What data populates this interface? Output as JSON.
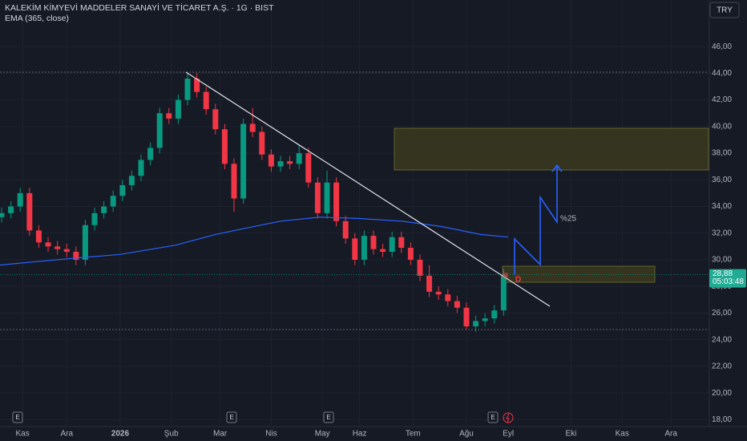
{
  "chart_data": {
    "type": "candlestick",
    "title": "KALEKİM KİMYEVİ MADDELER SANAYİ VE TİCARET A.Ş. · 1G · BIST",
    "currency": "TRY",
    "up_color": "#089981",
    "down_color": "#f23645",
    "x": [
      -9,
      -5,
      -1,
      3,
      7,
      11,
      15,
      19,
      23,
      27,
      31,
      35,
      39,
      43,
      47,
      51,
      55,
      59,
      63,
      67,
      71,
      75,
      79,
      83,
      87,
      91,
      95,
      99,
      103,
      107,
      111,
      115,
      119,
      123,
      127,
      131,
      135,
      139,
      143,
      147,
      151,
      155,
      159,
      163,
      167,
      171,
      175,
      179,
      183,
      187,
      191,
      195,
      199,
      203,
      207
    ],
    "open": [
      33.2,
      33.5,
      34.0,
      35.0,
      32.2,
      31.3,
      31.0,
      30.8,
      30.6,
      30.0,
      32.6,
      33.5,
      34.0,
      34.8,
      35.6,
      36.3,
      37.5,
      38.4,
      41.0,
      40.6,
      42.0,
      43.6,
      42.6,
      41.3,
      39.8,
      37.2,
      34.6,
      40.2,
      39.6,
      37.9,
      37.0,
      37.4,
      37.2,
      38.0,
      35.8,
      33.5,
      35.8,
      32.9,
      31.6,
      30.0,
      31.8,
      30.8,
      30.6,
      31.7,
      30.9,
      30.0,
      28.8,
      27.6,
      27.4,
      26.9,
      26.4,
      25.0,
      25.4,
      25.6,
      26.2
    ],
    "high": [
      33.9,
      34.4,
      35.4,
      35.4,
      32.6,
      31.7,
      31.4,
      31.2,
      31.0,
      33.0,
      33.9,
      34.4,
      35.2,
      36.0,
      36.7,
      37.9,
      38.8,
      41.4,
      41.4,
      42.4,
      44.0,
      44.0,
      43.0,
      41.7,
      40.2,
      37.6,
      40.6,
      41.4,
      40.0,
      38.3,
      37.8,
      37.8,
      38.6,
      38.4,
      36.2,
      36.7,
      36.2,
      33.3,
      32.0,
      32.2,
      32.2,
      31.2,
      32.1,
      32.1,
      31.3,
      30.4,
      29.6,
      28.0,
      27.8,
      27.3,
      26.8,
      25.8,
      26.0,
      26.6,
      29.3
    ],
    "low": [
      32.8,
      33.1,
      33.6,
      31.8,
      30.9,
      30.6,
      30.4,
      30.2,
      29.6,
      29.6,
      32.2,
      33.1,
      33.6,
      34.4,
      35.2,
      35.9,
      37.1,
      38.0,
      40.2,
      40.2,
      41.6,
      42.2,
      40.9,
      39.4,
      36.8,
      33.6,
      34.2,
      39.2,
      37.5,
      36.6,
      36.6,
      36.8,
      36.8,
      35.4,
      33.1,
      33.1,
      32.5,
      31.2,
      29.6,
      29.6,
      30.4,
      30.2,
      30.2,
      30.5,
      29.6,
      28.4,
      27.2,
      27.0,
      26.5,
      26.0,
      24.8,
      24.6,
      25.0,
      25.2,
      25.8
    ],
    "close": [
      33.5,
      34.0,
      35.0,
      32.2,
      31.3,
      31.0,
      30.8,
      30.6,
      30.0,
      32.6,
      33.5,
      34.0,
      34.8,
      35.6,
      36.3,
      37.5,
      38.4,
      41.0,
      40.6,
      42.0,
      43.6,
      42.6,
      41.3,
      39.8,
      37.2,
      34.6,
      40.2,
      39.6,
      37.9,
      37.0,
      37.4,
      37.2,
      38.0,
      35.8,
      33.5,
      35.8,
      32.9,
      31.6,
      30.0,
      31.8,
      30.8,
      30.6,
      31.7,
      30.9,
      30.0,
      28.8,
      27.6,
      27.4,
      26.9,
      26.4,
      25.0,
      25.4,
      25.6,
      26.2,
      28.88
    ],
    "ema": {
      "name": "EMA (365, close)",
      "color": "#2962ff",
      "x": [
        -10,
        21,
        42,
        66,
        83,
        94,
        111,
        128,
        145,
        163,
        180,
        197,
        209
      ],
      "values": [
        29.6,
        30.1,
        30.4,
        31.1,
        31.9,
        32.3,
        32.9,
        33.2,
        33.1,
        32.9,
        32.5,
        31.9,
        31.7
      ]
    },
    "last_price": {
      "value": 28.88,
      "label": "28,88"
    },
    "countdown": "05:03:48",
    "annotations": [
      "%25"
    ],
    "signal": "D",
    "events": [
      "E",
      "E",
      "E",
      "E"
    ],
    "xlim": [
      -9.7,
      295.5
    ],
    "xticks": [
      {
        "value": 0,
        "label": "Kas"
      },
      {
        "value": 19,
        "label": "Ara"
      },
      {
        "value": 42,
        "label": "2026"
      },
      {
        "value": 64,
        "label": "Şub"
      },
      {
        "value": 85,
        "label": "Mar"
      },
      {
        "value": 107,
        "label": "Nis"
      },
      {
        "value": 129,
        "label": "May"
      },
      {
        "value": 145,
        "label": "Haz"
      },
      {
        "value": 168,
        "label": "Tem"
      },
      {
        "value": 191,
        "label": "Ağu"
      },
      {
        "value": 209,
        "label": "Eyl"
      },
      {
        "value": 236,
        "label": "Eki"
      },
      {
        "value": 258,
        "label": "Kas"
      },
      {
        "value": 279,
        "label": "Ara"
      }
    ],
    "ylim": [
      17.6,
      49.5
    ],
    "yticks": [
      {
        "value": 18,
        "label": "18,00"
      },
      {
        "value": 20,
        "label": "20,00"
      },
      {
        "value": 22,
        "label": "22,00"
      },
      {
        "value": 24,
        "label": "24,00"
      },
      {
        "value": 26,
        "label": "26,00"
      },
      {
        "value": 28,
        "label": "28,00"
      },
      {
        "value": 30,
        "label": "30,00"
      },
      {
        "value": 32,
        "label": "32,00"
      },
      {
        "value": 34,
        "label": "34,00"
      },
      {
        "value": 36,
        "label": "36,00"
      },
      {
        "value": 38,
        "label": "38,00"
      },
      {
        "value": 40,
        "label": "40,00"
      },
      {
        "value": 42,
        "label": "42,00"
      },
      {
        "value": 44,
        "label": "44,00"
      },
      {
        "value": 46,
        "label": "46,00"
      }
    ],
    "grid": true
  }
}
